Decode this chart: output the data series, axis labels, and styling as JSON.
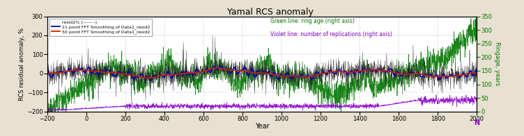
{
  "title": "Yamal RCS anomaly",
  "xlabel": "Year",
  "ylabel_left": "RCS residual anomaly, %",
  "ylabel_right_green": "Ringage, years",
  "ylabel_right_purple": "N",
  "legend_entries": [
    "resid2% (--------)",
    "11 point FFT Smoothing of Data1_resid2",
    "50 point FFT Smoothing of Data1_resid2"
  ],
  "legend_right": [
    "Green line: ring age (right axis)",
    "Violet line: number of replications (right axis)"
  ],
  "x_start": -200,
  "x_end": 2000,
  "ylim_left": [
    -200,
    300
  ],
  "ylim_right": [
    0,
    350
  ],
  "yticks_left": [
    -200,
    -100,
    0,
    100,
    200,
    300
  ],
  "yticks_right": [
    0,
    50,
    100,
    150,
    200,
    250,
    300,
    350
  ],
  "xticks": [
    -200,
    0,
    200,
    400,
    600,
    800,
    1000,
    1200,
    1400,
    1600,
    1800,
    2000
  ],
  "background_color": "#e8e0d0",
  "plot_bg_color": "#ffffff",
  "black_line_color": "#111111",
  "gray_line_color": "#aaaaaa",
  "blue_line_color": "#0000bb",
  "red_line_color": "#cc2200",
  "green_line_color": "#007700",
  "purple_line_color": "#8800cc",
  "seed": 42
}
